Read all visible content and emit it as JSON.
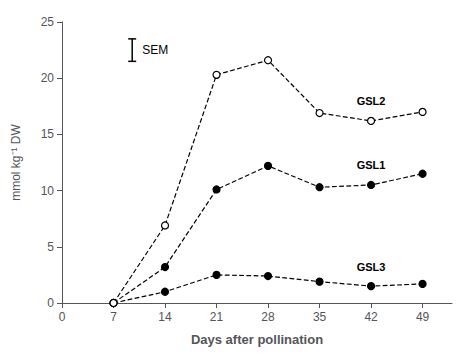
{
  "chart_data": {
    "type": "line",
    "xlabel": "Days after pollination",
    "ylabel": "mmol kg⁻¹ DW",
    "x": [
      7,
      14,
      21,
      28,
      35,
      42,
      49
    ],
    "series": [
      {
        "name": "GSL2",
        "color": "#000000",
        "marker": "open_circle",
        "line_style": "dashed",
        "values": [
          0.0,
          6.9,
          20.3,
          21.6,
          16.9,
          16.2,
          17.0
        ]
      },
      {
        "name": "GSL1",
        "color": "#000000",
        "marker": "circle",
        "line_style": "dashed",
        "values": [
          0.0,
          3.2,
          10.1,
          12.2,
          10.3,
          10.5,
          11.5
        ]
      },
      {
        "name": "GSL3",
        "color": "#000000",
        "marker": "circle",
        "line_style": "dashed",
        "values": [
          0.0,
          1.0,
          2.5,
          2.4,
          1.9,
          1.5,
          1.7
        ]
      }
    ],
    "xlim": [
      0,
      53
    ],
    "ylim": [
      0,
      25
    ],
    "xticks": [
      0,
      7,
      14,
      21,
      28,
      35,
      42,
      49
    ],
    "yticks": [
      0,
      5,
      10,
      15,
      20,
      25
    ],
    "grid": false,
    "sem": {
      "label": "SEM",
      "half_height": 1.0
    }
  }
}
